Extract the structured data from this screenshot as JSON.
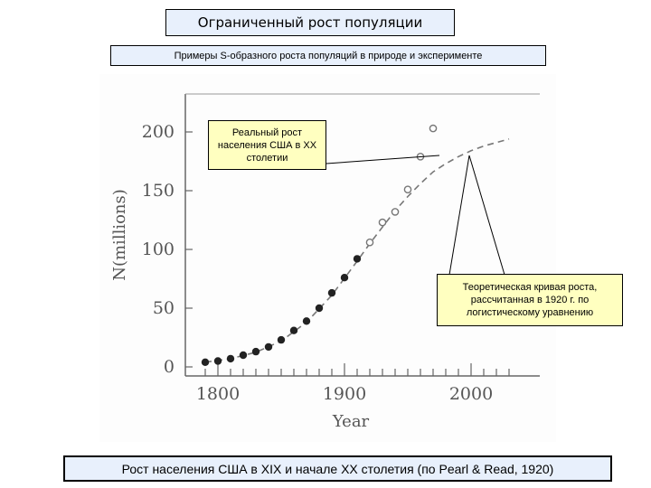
{
  "title": "Ограниченный рост популяции",
  "subtitle": "Примеры S-образного роста популяций в природе и эксперименте",
  "caption": "Рост населения США в XIX и начале XX столетия (по Pearl & Read, 1920)",
  "annotations": {
    "real_growth": "Реальный рост населения США в XX столетии",
    "theoretical_curve": "Теоретическая кривая роста, рассчитанная в 1920 г. по логистическому уравнению"
  },
  "chart_data": {
    "type": "scatter",
    "title": "",
    "xlabel": "Year",
    "ylabel": "N(millions)",
    "xlim": [
      1780,
      2040
    ],
    "ylim": [
      0,
      220
    ],
    "xticks": [
      1800,
      1900,
      2000
    ],
    "yticks": [
      0,
      50,
      100,
      150,
      200
    ],
    "grid": false,
    "series": [
      {
        "name": "",
        "marker": "filled-circle",
        "x": [
          1790,
          1800,
          1810,
          1820,
          1830,
          1840,
          1850,
          1860,
          1870,
          1880,
          1890,
          1900,
          1910
        ],
        "y": [
          4,
          5,
          7,
          10,
          13,
          17,
          23,
          31,
          39,
          50,
          63,
          76,
          92
        ]
      },
      {
        "name": "",
        "marker": "open-circle",
        "x": [
          1920,
          1930,
          1940,
          1950,
          1960,
          1970
        ],
        "y": [
          106,
          123,
          132,
          151,
          179,
          203
        ]
      },
      {
        "name": "",
        "line": "dashed",
        "x": [
          1790,
          1810,
          1830,
          1850,
          1870,
          1890,
          1910,
          1920,
          1930,
          1940,
          1950,
          1960,
          1970,
          1980,
          1990,
          2000,
          2010,
          2020,
          2030
        ],
        "y": [
          4,
          7,
          12.5,
          22,
          38,
          61,
          90,
          105,
          119,
          133,
          145,
          156,
          166,
          173,
          179,
          184,
          188,
          191,
          194
        ]
      }
    ]
  }
}
